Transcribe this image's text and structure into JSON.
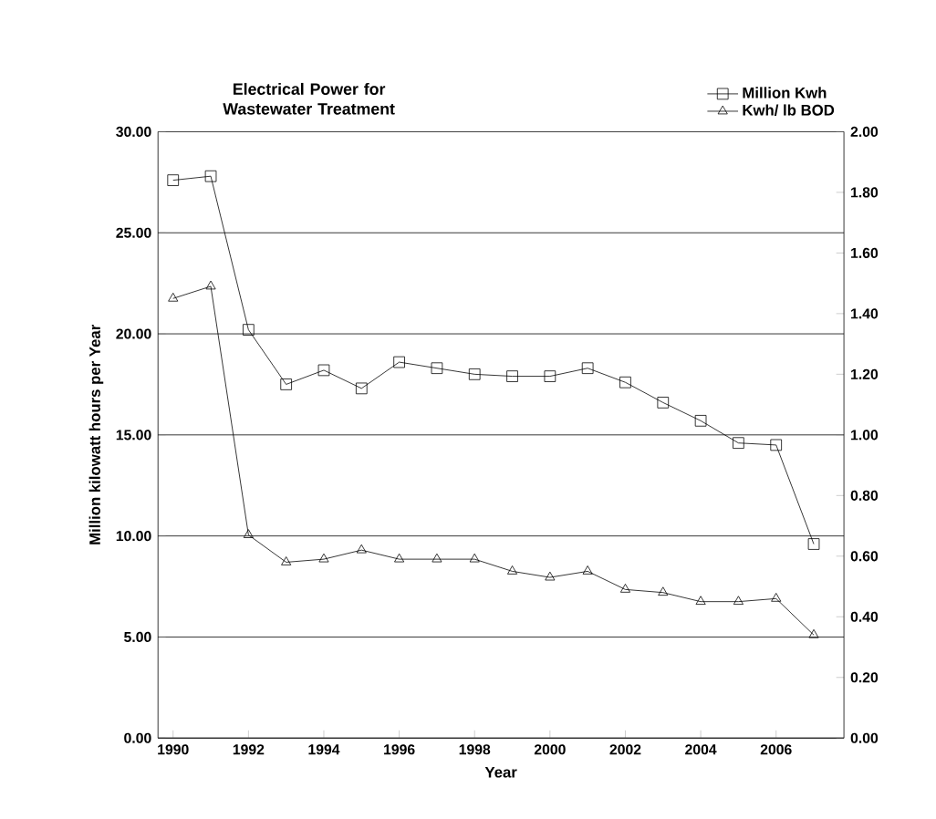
{
  "chart_data": {
    "type": "line",
    "title": "Electrical Power for Wastewater Treatment",
    "xlabel": "Year",
    "ylabel": "Million kilowatt hours per Year",
    "x": [
      1990,
      1991,
      1992,
      1993,
      1994,
      1995,
      1996,
      1997,
      1998,
      1999,
      2000,
      2001,
      2002,
      2003,
      2004,
      2005,
      2006,
      2007
    ],
    "series": [
      {
        "name": "Million Kwh",
        "color": "#000000",
        "marker": "square",
        "values": [
          27.6,
          27.8,
          20.2,
          17.5,
          18.2,
          17.3,
          18.6,
          18.3,
          18.0,
          17.9,
          17.9,
          18.3,
          17.6,
          16.6,
          15.7,
          14.6,
          14.5,
          9.6
        ]
      },
      {
        "name": "Kwh/ lb BOD",
        "color": "#000000",
        "marker": "triangle",
        "axis": "y2",
        "values": [
          1.45,
          1.49,
          0.67,
          0.58,
          0.59,
          0.62,
          0.59,
          0.59,
          0.59,
          0.55,
          0.53,
          0.55,
          0.49,
          0.48,
          0.45,
          0.45,
          0.46,
          0.34
        ]
      }
    ],
    "xlim": [
      1989.6,
      2007.8
    ],
    "xticks": [
      1990,
      1992,
      1994,
      1996,
      1998,
      2000,
      2002,
      2004,
      2006
    ],
    "ylim": [
      0,
      30
    ],
    "yticks": [
      {
        "value": 0,
        "label": "0.00"
      },
      {
        "value": 5,
        "label": "5.00"
      },
      {
        "value": 10,
        "label": "10.00"
      },
      {
        "value": 15,
        "label": "15.00"
      },
      {
        "value": 20,
        "label": "20.00"
      },
      {
        "value": 25,
        "label": "25.00"
      },
      {
        "value": 30,
        "label": "30.00"
      }
    ],
    "y2lim": [
      0,
      2
    ],
    "y2ticks": [
      {
        "value": 0,
        "label": "0.00"
      },
      {
        "value": 0.2,
        "label": "0.20"
      },
      {
        "value": 0.4,
        "label": "0.40"
      },
      {
        "value": 0.6,
        "label": "0.60"
      },
      {
        "value": 0.8,
        "label": "0.80"
      },
      {
        "value": 1.0,
        "label": "1.00"
      },
      {
        "value": 1.2,
        "label": "1.20"
      },
      {
        "value": 1.4,
        "label": "1.40"
      },
      {
        "value": 1.6,
        "label": "1.60"
      },
      {
        "value": 1.8,
        "label": "1.80"
      },
      {
        "value": 2.0,
        "label": "2.00"
      }
    ],
    "grid": "y",
    "legend": "top right",
    "line_style": "solid"
  }
}
